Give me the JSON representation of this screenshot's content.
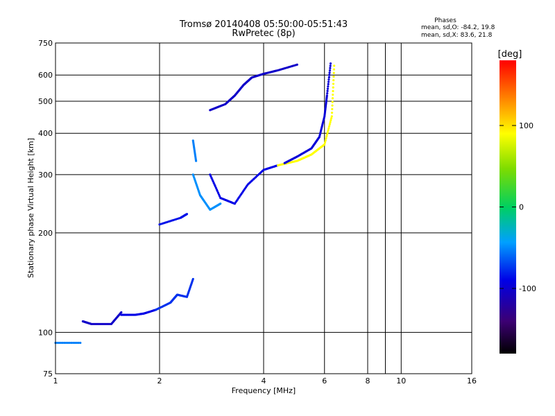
{
  "chart_data": {
    "type": "scatter",
    "title": "Tromsø 20140408 05:50:00-05:51:43",
    "subtitle": "RwPretec (8p)",
    "xlabel": "Frequency [MHz]",
    "ylabel": "Stationary phase Virtual Height [km]",
    "x_scale": "log",
    "y_scale": "log",
    "xlim": [
      1,
      16
    ],
    "ylim": [
      75,
      750
    ],
    "x_ticks": [
      1,
      2,
      4,
      6,
      8,
      10,
      16
    ],
    "y_ticks": [
      75,
      100,
      200,
      300,
      400,
      500,
      600,
      750
    ],
    "x_gridlines": [
      1,
      2,
      4,
      6,
      8,
      9,
      10
    ],
    "y_gridlines": [
      100,
      200,
      300,
      400,
      500,
      600
    ],
    "legend": {
      "title": "Phases",
      "lines": [
        "mean, sd,O: -84.2, 19.8",
        "mean, sd,X: 83.6, 21.8"
      ]
    },
    "colorbar": {
      "label": "[deg]",
      "range": [
        -180,
        180
      ],
      "ticks": [
        100,
        0,
        -100
      ],
      "colormap": "rainbow: black(-180) → violet → blue(-100) → cyan → green(0) → yellow(100) → orange → red(180)"
    },
    "traces": [
      {
        "x": [
          1.0,
          1.18
        ],
        "y": [
          93,
          93
        ],
        "phase": -60
      },
      {
        "x": [
          1.2,
          1.27,
          1.45,
          1.55
        ],
        "y": [
          108,
          106,
          106,
          115
        ],
        "phase": -110
      },
      {
        "x": [
          1.55,
          1.7,
          1.8,
          1.95
        ],
        "y": [
          113,
          113,
          114,
          117
        ],
        "phase": -100
      },
      {
        "x": [
          1.95,
          2.15,
          2.25,
          2.4,
          2.5
        ],
        "y": [
          117,
          123,
          130,
          128,
          145
        ],
        "phase": -85
      },
      {
        "x": [
          2.0,
          2.3,
          2.4
        ],
        "y": [
          212,
          222,
          228
        ],
        "phase": -95
      },
      {
        "x": [
          2.5,
          2.55
        ],
        "y": [
          380,
          330
        ],
        "phase": -60
      },
      {
        "x": [
          2.5,
          2.62,
          2.8,
          3.0
        ],
        "y": [
          300,
          260,
          235,
          245
        ],
        "phase": -55
      },
      {
        "x": [
          2.8,
          3.0,
          3.3,
          3.6,
          4.0,
          4.4
        ],
        "y": [
          300,
          255,
          245,
          280,
          310,
          320
        ],
        "phase": -100
      },
      {
        "x": [
          4.4,
          5.0,
          5.5,
          6.0,
          6.3,
          6.4
        ],
        "y": [
          320,
          330,
          345,
          370,
          450,
          640
        ],
        "phase": 100
      },
      {
        "x": [
          4.6,
          5.0,
          5.5,
          5.8,
          6.0,
          6.1,
          6.25
        ],
        "y": [
          325,
          340,
          360,
          390,
          450,
          520,
          650
        ],
        "phase": -105
      },
      {
        "x": [
          2.8,
          3.1,
          3.3,
          3.5,
          3.7,
          4.0,
          4.4,
          5.0
        ],
        "y": [
          470,
          490,
          520,
          560,
          590,
          605,
          620,
          645
        ],
        "phase": -110
      }
    ]
  }
}
